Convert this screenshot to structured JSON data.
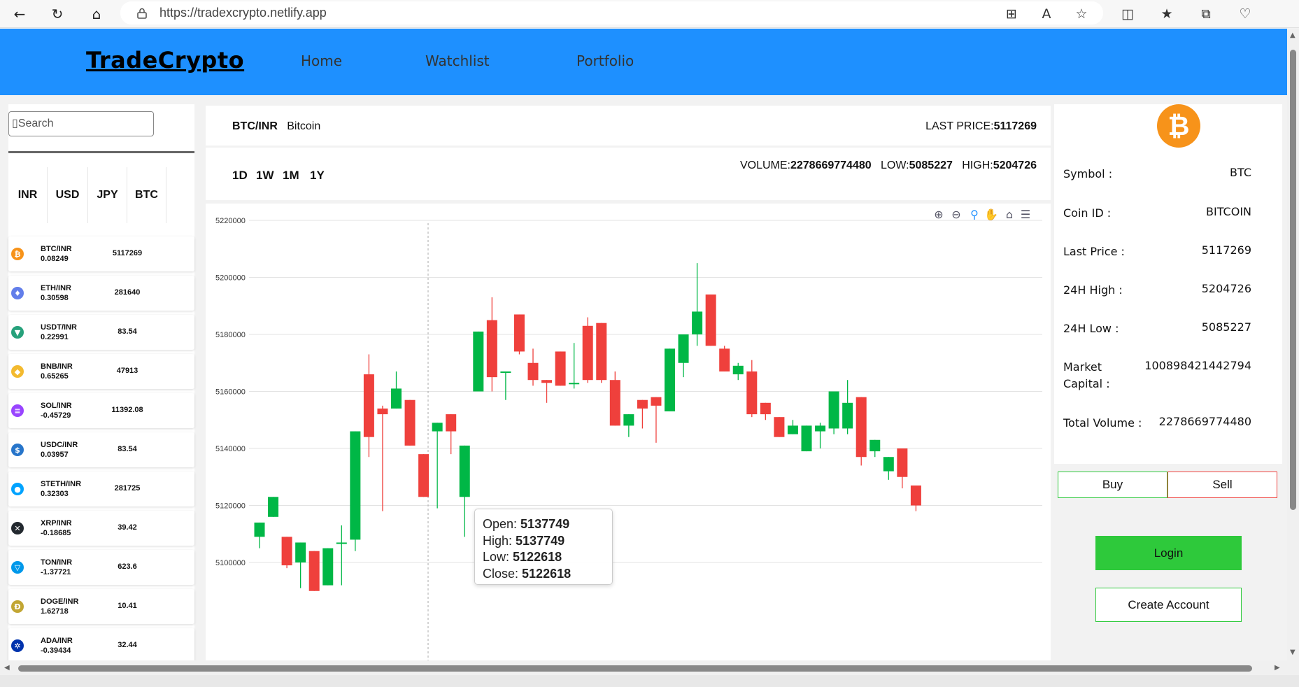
{
  "browser": {
    "url": "https://tradexcrypto.netlify.app"
  },
  "header": {
    "brand": "TradeCrypto",
    "nav": [
      "Home",
      "Watchlist",
      "Portfolio"
    ]
  },
  "sidebar": {
    "search_placeholder": "Search",
    "search_glyph": "▯",
    "currencies": [
      "INR",
      "USD",
      "JPY",
      "BTC"
    ],
    "coins": [
      {
        "pair": "BTC/INR",
        "change": "0.08249",
        "price": "5117269",
        "icon": "bitcoin-icon",
        "color": "#f7931a",
        "glyph": "₿"
      },
      {
        "pair": "ETH/INR",
        "change": "0.30598",
        "price": "281640",
        "icon": "ethereum-icon",
        "color": "#627eea",
        "glyph": "♦"
      },
      {
        "pair": "USDT/INR",
        "change": "0.22991",
        "price": "83.54",
        "icon": "tether-icon",
        "color": "#26a17b",
        "glyph": "▼"
      },
      {
        "pair": "BNB/INR",
        "change": "0.65265",
        "price": "47913",
        "icon": "bnb-icon",
        "color": "#f3ba2f",
        "glyph": "◆"
      },
      {
        "pair": "SOL/INR",
        "change": "-0.45729",
        "price": "11392.08",
        "icon": "solana-icon",
        "color": "#9945ff",
        "glyph": "≡"
      },
      {
        "pair": "USDC/INR",
        "change": "0.03957",
        "price": "83.54",
        "icon": "usdc-icon",
        "color": "#2775ca",
        "glyph": "$"
      },
      {
        "pair": "STETH/INR",
        "change": "0.32303",
        "price": "281725",
        "icon": "steth-icon",
        "color": "#00a3ff",
        "glyph": "●"
      },
      {
        "pair": "XRP/INR",
        "change": "-0.18685",
        "price": "39.42",
        "icon": "xrp-icon",
        "color": "#23292f",
        "glyph": "✕"
      },
      {
        "pair": "TON/INR",
        "change": "-1.37721",
        "price": "623.6",
        "icon": "toncoin-icon",
        "color": "#0098ea",
        "glyph": "▽"
      },
      {
        "pair": "DOGE/INR",
        "change": "1.62718",
        "price": "10.41",
        "icon": "dogecoin-icon",
        "color": "#c2a633",
        "glyph": "Ð"
      },
      {
        "pair": "ADA/INR",
        "change": "-0.39434",
        "price": "32.44",
        "icon": "cardano-icon",
        "color": "#0033ad",
        "glyph": "✲"
      }
    ]
  },
  "market": {
    "pair": "BTC/INR",
    "name": "Bitcoin",
    "last_price_label": "LAST PRICE:",
    "last_price": "5117269",
    "ranges": [
      "1D",
      "1W",
      "1M",
      "1Y"
    ],
    "volume_label": "VOLUME:",
    "volume": "2278669774480",
    "low_label": "LOW:",
    "low": "5085227",
    "high_label": "HIGH:",
    "high": "5204726"
  },
  "chart_toolbar": [
    "zoom-in-icon",
    "zoom-out-icon",
    "zoom-select-icon",
    "pan-icon",
    "reset-home-icon",
    "menu-icon"
  ],
  "tooltip": {
    "open_label": "Open: ",
    "open": "5137749",
    "high_label": "High: ",
    "high": "5137749",
    "low_label": "Low: ",
    "low": "5122618",
    "close_label": "Close: ",
    "close": "5122618"
  },
  "coin_info": {
    "logo_glyph": "₿",
    "rows": [
      {
        "label": "Symbol :",
        "value": "BTC"
      },
      {
        "label": "Coin ID :",
        "value": "BITCOIN"
      },
      {
        "label": "Last Price :",
        "value": "5117269"
      },
      {
        "label": "24H High :",
        "value": "5204726"
      },
      {
        "label": "24H Low :",
        "value": "5085227"
      },
      {
        "label": "Market Capital :",
        "value": "100898421442794"
      },
      {
        "label": "Total Volume :",
        "value": "2278669774480"
      }
    ]
  },
  "actions": {
    "buy": "Buy",
    "sell": "Sell",
    "login": "Login",
    "create_account": "Create Account"
  },
  "colors": {
    "header": "#1e90ff",
    "up": "#00b746",
    "down": "#ef403c",
    "login": "#2ec93b"
  },
  "chart_data": {
    "type": "candlestick",
    "ylim": [
      5092000,
      5222000
    ],
    "yticks": [
      5220000,
      5200000,
      5180000,
      5160000,
      5140000,
      5120000,
      5100000
    ],
    "candles": [
      {
        "o": 5109000,
        "h": 5114000,
        "l": 5105000,
        "c": 5114000
      },
      {
        "o": 5116000,
        "h": 5123000,
        "l": 5116000,
        "c": 5123000
      },
      {
        "o": 5109000,
        "h": 5109000,
        "l": 5098000,
        "c": 5099000
      },
      {
        "o": 5100000,
        "h": 5107000,
        "l": 5091000,
        "c": 5107000
      },
      {
        "o": 5104000,
        "h": 5104000,
        "l": 5090000,
        "c": 5090000
      },
      {
        "o": 5092000,
        "h": 5105000,
        "l": 5092000,
        "c": 5105000
      },
      {
        "o": 5107000,
        "h": 5113000,
        "l": 5092000,
        "c": 5107000
      },
      {
        "o": 5108000,
        "h": 5146000,
        "l": 5104000,
        "c": 5146000
      },
      {
        "o": 5166000,
        "h": 5173000,
        "l": 5137000,
        "c": 5144000
      },
      {
        "o": 5154000,
        "h": 5155000,
        "l": 5118000,
        "c": 5152000
      },
      {
        "o": 5154000,
        "h": 5167000,
        "l": 5154000,
        "c": 5161000
      },
      {
        "o": 5157000,
        "h": 5157000,
        "l": 5141000,
        "c": 5141000
      },
      {
        "o": 5138000,
        "h": 5138000,
        "l": 5123000,
        "c": 5123000
      },
      {
        "o": 5146000,
        "h": 5149000,
        "l": 5119000,
        "c": 5149000
      },
      {
        "o": 5152000,
        "h": 5152000,
        "l": 5138000,
        "c": 5146000
      },
      {
        "o": 5123000,
        "h": 5141000,
        "l": 5109000,
        "c": 5141000
      },
      {
        "o": 5160000,
        "h": 5181000,
        "l": 5160000,
        "c": 5181000
      },
      {
        "o": 5185000,
        "h": 5193000,
        "l": 5160000,
        "c": 5165000
      },
      {
        "o": 5167000,
        "h": 5167000,
        "l": 5157000,
        "c": 5167000
      },
      {
        "o": 5187000,
        "h": 5187000,
        "l": 5173000,
        "c": 5174000
      },
      {
        "o": 5170000,
        "h": 5175000,
        "l": 5162000,
        "c": 5164000
      },
      {
        "o": 5164000,
        "h": 5164000,
        "l": 5156000,
        "c": 5163000
      },
      {
        "o": 5174000,
        "h": 5174000,
        "l": 5162000,
        "c": 5162000
      },
      {
        "o": 5163000,
        "h": 5177000,
        "l": 5161000,
        "c": 5163000
      },
      {
        "o": 5183000,
        "h": 5186000,
        "l": 5163000,
        "c": 5164000
      },
      {
        "o": 5184000,
        "h": 5184000,
        "l": 5163000,
        "c": 5164000
      },
      {
        "o": 5164000,
        "h": 5167000,
        "l": 5148000,
        "c": 5148000
      },
      {
        "o": 5148000,
        "h": 5152000,
        "l": 5144000,
        "c": 5152000
      },
      {
        "o": 5157000,
        "h": 5157000,
        "l": 5147000,
        "c": 5154000
      },
      {
        "o": 5158000,
        "h": 5158000,
        "l": 5142000,
        "c": 5155000
      },
      {
        "o": 5153000,
        "h": 5175000,
        "l": 5153000,
        "c": 5175000
      },
      {
        "o": 5170000,
        "h": 5180000,
        "l": 5165000,
        "c": 5180000
      },
      {
        "o": 5180000,
        "h": 5205000,
        "l": 5176000,
        "c": 5188000
      },
      {
        "o": 5194000,
        "h": 5194000,
        "l": 5176000,
        "c": 5176000
      },
      {
        "o": 5175000,
        "h": 5176000,
        "l": 5167000,
        "c": 5167000
      },
      {
        "o": 5166000,
        "h": 5170000,
        "l": 5164000,
        "c": 5169000
      },
      {
        "o": 5167000,
        "h": 5171000,
        "l": 5151000,
        "c": 5152000
      },
      {
        "o": 5156000,
        "h": 5156000,
        "l": 5150000,
        "c": 5152000
      },
      {
        "o": 5151000,
        "h": 5151000,
        "l": 5144000,
        "c": 5144000
      },
      {
        "o": 5145000,
        "h": 5150000,
        "l": 5145000,
        "c": 5148000
      },
      {
        "o": 5139000,
        "h": 5148000,
        "l": 5139000,
        "c": 5148000
      },
      {
        "o": 5146000,
        "h": 5149000,
        "l": 5140000,
        "c": 5148000
      },
      {
        "o": 5147000,
        "h": 5160000,
        "l": 5145000,
        "c": 5160000
      },
      {
        "o": 5147000,
        "h": 5164000,
        "l": 5145000,
        "c": 5156000
      },
      {
        "o": 5158000,
        "h": 5158000,
        "l": 5134000,
        "c": 5137000
      },
      {
        "o": 5139000,
        "h": 5143000,
        "l": 5137000,
        "c": 5143000
      },
      {
        "o": 5132000,
        "h": 5137000,
        "l": 5129000,
        "c": 5137000
      },
      {
        "o": 5140000,
        "h": 5140000,
        "l": 5126000,
        "c": 5130000
      },
      {
        "o": 5127000,
        "h": 5127000,
        "l": 5118000,
        "c": 5120000
      }
    ]
  }
}
